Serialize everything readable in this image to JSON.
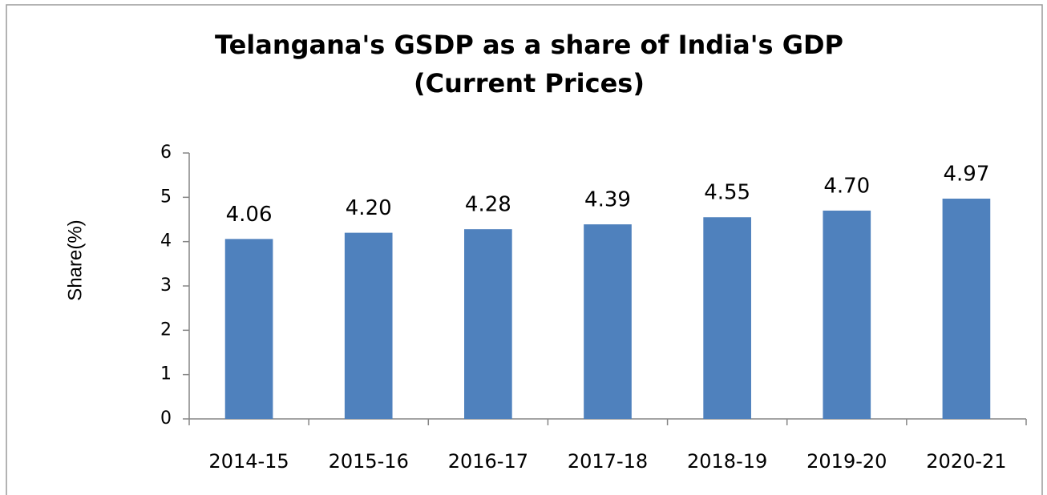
{
  "chart_data": {
    "type": "bar",
    "title": "Telangana's GSDP as a share of  India's GDP",
    "subtitle": "(Current Prices)",
    "y_label": "Share(%)",
    "categories": [
      "2014-15",
      "2015-16",
      "2016-17",
      "2017-18",
      "2018-19",
      "2019-20",
      "2020-21"
    ],
    "values": [
      4.06,
      4.2,
      4.28,
      4.39,
      4.55,
      4.7,
      4.97
    ],
    "value_labels": [
      "4.06",
      "4.20",
      "4.28",
      "4.39",
      "4.55",
      "4.70",
      "4.97"
    ],
    "color": "#4f81bd",
    "title_color": "#c00000",
    "ylim": [
      0,
      6
    ],
    "yticks": [
      0,
      1,
      2,
      3,
      4,
      5,
      6
    ],
    "grid": false
  }
}
